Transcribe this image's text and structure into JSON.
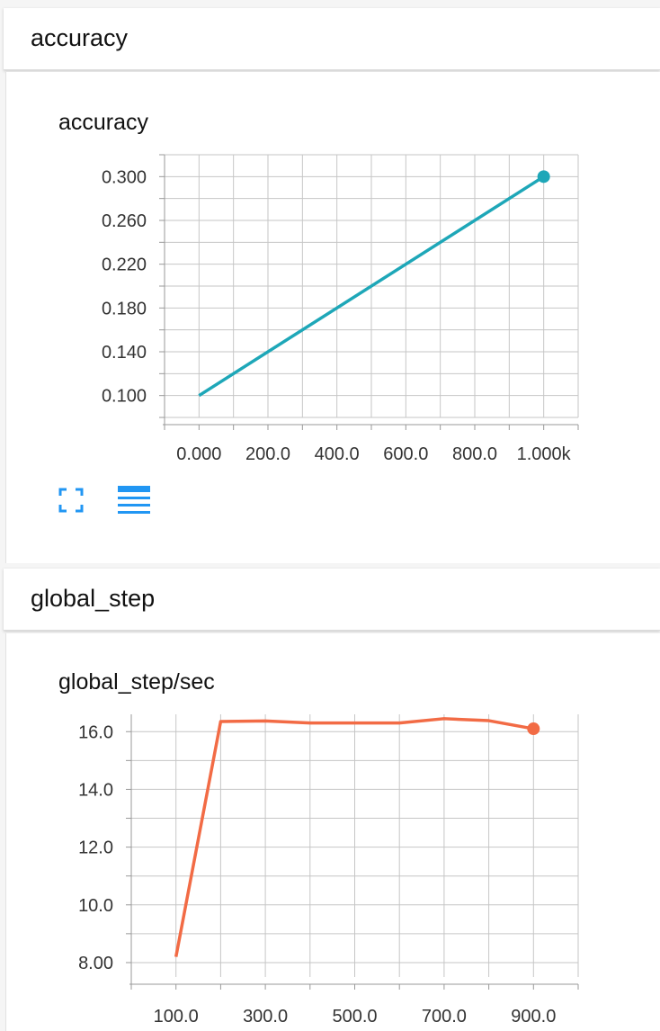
{
  "sections": [
    {
      "header": "accuracy",
      "card_title": "accuracy",
      "controls": {
        "expand_icon": "fullscreen-icon",
        "data_icon": "list-icon"
      }
    },
    {
      "header": "global_step",
      "card_title": "global_step/sec"
    }
  ],
  "colors": {
    "accuracy_series": "#1ea7b8",
    "global_step_series": "#f26b45",
    "icon_blue": "#2196f3",
    "grid": "#c6c6c6"
  },
  "chart_data": [
    {
      "type": "line",
      "title": "accuracy",
      "x": [
        0,
        1000
      ],
      "series": [
        {
          "values": [
            0.1,
            0.3
          ]
        }
      ],
      "xlim": [
        -100,
        1100
      ],
      "ylim": [
        0.08,
        0.32
      ],
      "x_ticks": [
        0,
        200,
        400,
        600,
        800,
        1000
      ],
      "x_tick_labels": [
        "0.000",
        "200.0",
        "400.0",
        "600.0",
        "800.0",
        "1.000k"
      ],
      "y_ticks": [
        0.1,
        0.14,
        0.18,
        0.22,
        0.26,
        0.3
      ],
      "y_tick_labels": [
        "0.100",
        "0.140",
        "0.180",
        "0.220",
        "0.260",
        "0.300"
      ],
      "grid": true,
      "last_point_marker": true
    },
    {
      "type": "line",
      "title": "global_step/sec",
      "x": [
        100,
        200,
        300,
        400,
        500,
        600,
        700,
        800,
        900
      ],
      "series": [
        {
          "values": [
            8.2,
            16.35,
            16.37,
            16.3,
            16.3,
            16.3,
            16.45,
            16.38,
            16.1
          ]
        }
      ],
      "xlim": [
        0,
        1000
      ],
      "ylim": [
        7.5,
        16.6
      ],
      "x_ticks": [
        100,
        300,
        500,
        700,
        900
      ],
      "x_tick_labels": [
        "100.0",
        "300.0",
        "500.0",
        "700.0",
        "900.0"
      ],
      "y_ticks": [
        8,
        10,
        12,
        14,
        16
      ],
      "y_tick_labels": [
        "8.00",
        "10.0",
        "12.0",
        "14.0",
        "16.0"
      ],
      "grid": true,
      "last_point_marker": true
    }
  ]
}
